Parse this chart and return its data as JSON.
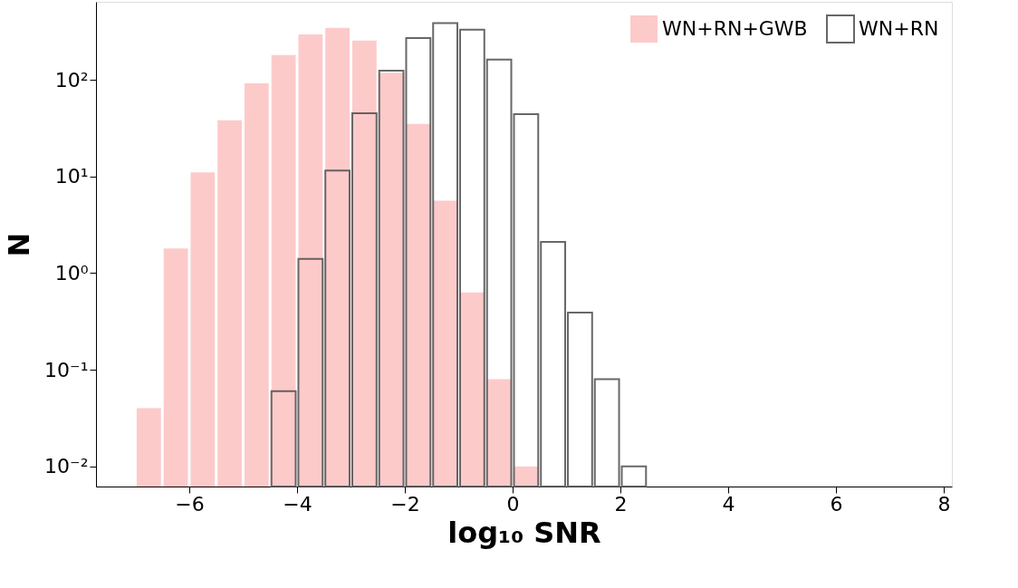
{
  "chart_data": {
    "type": "histogram",
    "xlabel": "log₁₀ SNR",
    "ylabel": "N",
    "bins": [
      -7,
      -6.5,
      -6,
      -5.5,
      -5,
      -4.5,
      -4,
      -3.5,
      -3,
      -2.5,
      -2,
      -1.5,
      -1,
      -0.5,
      0,
      0.5,
      1,
      1.5,
      2,
      2.5
    ],
    "series": [
      {
        "name": "WN+RN",
        "color": "#4d4d4d",
        "values": [
          null,
          null,
          null,
          null,
          null,
          0.06,
          1.4,
          11.5,
          45,
          124,
          270,
          385,
          330,
          162,
          44,
          2.1,
          0.39,
          0.08,
          0.01
        ]
      },
      {
        "name": "WN+RN+GWB",
        "color": "#fdcaca",
        "values": [
          0.04,
          1.8,
          11,
          38,
          92,
          180,
          295,
          345,
          255,
          118,
          35,
          5.6,
          0.63,
          0.08,
          0.01,
          null,
          null,
          null,
          null
        ]
      }
    ],
    "log": "y",
    "xlim": [
      -7.73,
      8.15
    ],
    "xticks": [
      {
        "value": -6,
        "label": "−6"
      },
      {
        "value": -4,
        "label": "−4"
      },
      {
        "value": -2,
        "label": "−2"
      },
      0,
      2,
      4,
      6,
      8
    ],
    "ylim": [
      0.0062,
      640
    ],
    "yticks": [
      {
        "value": 0.01,
        "label": "10⁻²"
      },
      {
        "value": 0.1,
        "label": "10⁻¹"
      },
      {
        "value": 1,
        "label": "10⁰"
      },
      {
        "value": 10,
        "label": "10¹"
      },
      {
        "value": 100,
        "label": "10²"
      }
    ],
    "legend": "top right",
    "grid": false
  }
}
